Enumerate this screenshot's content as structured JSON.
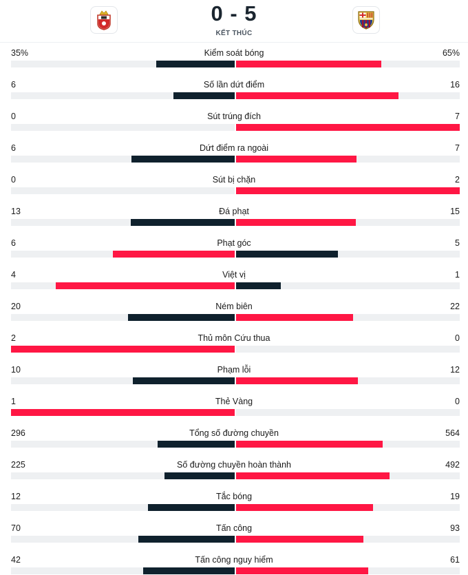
{
  "match": {
    "home_logo": "bullfighter-crest-icon",
    "away_logo": "barcelona-crest-icon",
    "score": "0 - 5",
    "status": "KẾT THÚC"
  },
  "colors": {
    "home_bar": "#0f212d",
    "away_bar": "#ff1744",
    "track": "#eef0f2"
  },
  "stats": [
    {
      "label": "Kiểm soát bóng",
      "home": "35%",
      "away": "65%",
      "home_num": 35,
      "away_num": 65
    },
    {
      "label": "Số lần dứt điểm",
      "home": "6",
      "away": "16",
      "home_num": 6,
      "away_num": 16
    },
    {
      "label": "Sút trúng đích",
      "home": "0",
      "away": "7",
      "home_num": 0,
      "away_num": 7
    },
    {
      "label": "Dứt điểm ra ngoài",
      "home": "6",
      "away": "7",
      "home_num": 6,
      "away_num": 7
    },
    {
      "label": "Sút bị chặn",
      "home": "0",
      "away": "2",
      "home_num": 0,
      "away_num": 2
    },
    {
      "label": "Đá phạt",
      "home": "13",
      "away": "15",
      "home_num": 13,
      "away_num": 15
    },
    {
      "label": "Phạt góc",
      "home": "6",
      "away": "5",
      "home_num": 6,
      "away_num": 5
    },
    {
      "label": "Việt vị",
      "home": "4",
      "away": "1",
      "home_num": 4,
      "away_num": 1
    },
    {
      "label": "Ném biên",
      "home": "20",
      "away": "22",
      "home_num": 20,
      "away_num": 22
    },
    {
      "label": "Thủ môn Cứu thua",
      "home": "2",
      "away": "0",
      "home_num": 2,
      "away_num": 0
    },
    {
      "label": "Phạm lỗi",
      "home": "10",
      "away": "12",
      "home_num": 10,
      "away_num": 12
    },
    {
      "label": "Thẻ Vàng",
      "home": "1",
      "away": "0",
      "home_num": 1,
      "away_num": 0
    },
    {
      "label": "Tổng số đường chuyền",
      "home": "296",
      "away": "564",
      "home_num": 296,
      "away_num": 564
    },
    {
      "label": "Số đường chuyền hoàn thành",
      "home": "225",
      "away": "492",
      "home_num": 225,
      "away_num": 492
    },
    {
      "label": "Tắc bóng",
      "home": "12",
      "away": "19",
      "home_num": 12,
      "away_num": 19
    },
    {
      "label": "Tấn công",
      "home": "70",
      "away": "93",
      "home_num": 70,
      "away_num": 93
    },
    {
      "label": "Tấn công nguy hiểm",
      "home": "42",
      "away": "61",
      "home_num": 42,
      "away_num": 61
    }
  ]
}
